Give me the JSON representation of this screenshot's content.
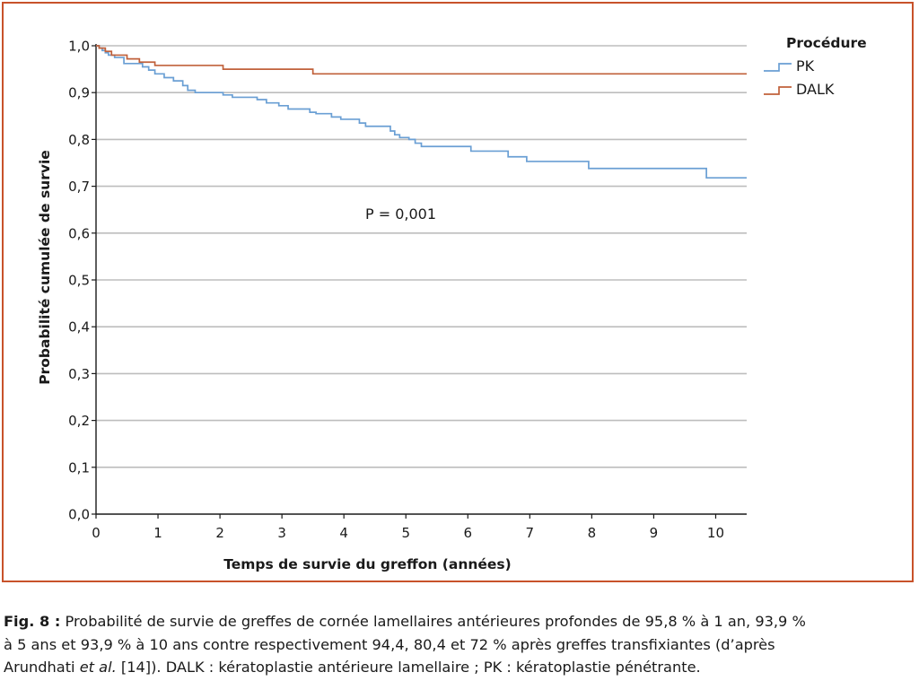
{
  "chart_data": {
    "type": "line",
    "step": true,
    "xlabel": "Temps de survie du greffon (années)",
    "ylabel": "Probabilité cumulée de survie",
    "xlim": [
      0,
      10.5
    ],
    "ylim": [
      0,
      1
    ],
    "xticks": [
      "0",
      "1",
      "2",
      "3",
      "4",
      "5",
      "6",
      "7",
      "8",
      "9",
      "10"
    ],
    "yticks": [
      "0,0",
      "0,1",
      "0,2",
      "0,3",
      "0,4",
      "0,5",
      "0,6",
      "0,7",
      "0,8",
      "0,9",
      "1,0"
    ],
    "grid": "horizontal",
    "legend": {
      "title": "Procédure",
      "position": "top-right"
    },
    "annotation": "P = 0,001",
    "series": [
      {
        "name": "PK",
        "color": "#6a9fd4",
        "points": [
          [
            0,
            1.0
          ],
          [
            0.05,
            0.995
          ],
          [
            0.1,
            0.99
          ],
          [
            0.15,
            0.985
          ],
          [
            0.2,
            0.98
          ],
          [
            0.3,
            0.975
          ],
          [
            0.45,
            0.962
          ],
          [
            0.75,
            0.955
          ],
          [
            0.85,
            0.948
          ],
          [
            0.95,
            0.94
          ],
          [
            1.1,
            0.932
          ],
          [
            1.25,
            0.925
          ],
          [
            1.4,
            0.915
          ],
          [
            1.48,
            0.905
          ],
          [
            1.6,
            0.9
          ],
          [
            2.05,
            0.895
          ],
          [
            2.2,
            0.89
          ],
          [
            2.6,
            0.885
          ],
          [
            2.75,
            0.878
          ],
          [
            2.95,
            0.872
          ],
          [
            3.1,
            0.865
          ],
          [
            3.45,
            0.858
          ],
          [
            3.55,
            0.855
          ],
          [
            3.8,
            0.848
          ],
          [
            3.95,
            0.843
          ],
          [
            4.25,
            0.835
          ],
          [
            4.35,
            0.828
          ],
          [
            4.75,
            0.818
          ],
          [
            4.82,
            0.81
          ],
          [
            4.9,
            0.804
          ],
          [
            5.05,
            0.8
          ],
          [
            5.15,
            0.792
          ],
          [
            5.25,
            0.785
          ],
          [
            6.05,
            0.775
          ],
          [
            6.65,
            0.763
          ],
          [
            6.95,
            0.753
          ],
          [
            7.95,
            0.738
          ],
          [
            9.85,
            0.718
          ],
          [
            10.5,
            0.718
          ]
        ]
      },
      {
        "name": "DALK",
        "color": "#c0603a",
        "points": [
          [
            0,
            1.0
          ],
          [
            0.05,
            0.995
          ],
          [
            0.15,
            0.988
          ],
          [
            0.25,
            0.98
          ],
          [
            0.5,
            0.972
          ],
          [
            0.7,
            0.965
          ],
          [
            0.95,
            0.958
          ],
          [
            2.05,
            0.95
          ],
          [
            3.5,
            0.94
          ],
          [
            10.5,
            0.94
          ]
        ]
      }
    ]
  },
  "caption": {
    "label": "Fig. 8 :",
    "line1": "Probabilité de survie de greffes de cornée lamellaires antérieures profondes de 95,8 % à 1 an, 93,9 %",
    "line2": "à 5 ans et 93,9 % à 10 ans contre respectivement 94,4, 80,4 et 72 % après greffes transfixiantes (d’après",
    "line3_a": "Arundhati",
    "line3_em": "et al.",
    "line3_b": "[14]). DALK : kératoplastie antérieure lamellaire ; PK : kératoplastie pénétrante."
  }
}
